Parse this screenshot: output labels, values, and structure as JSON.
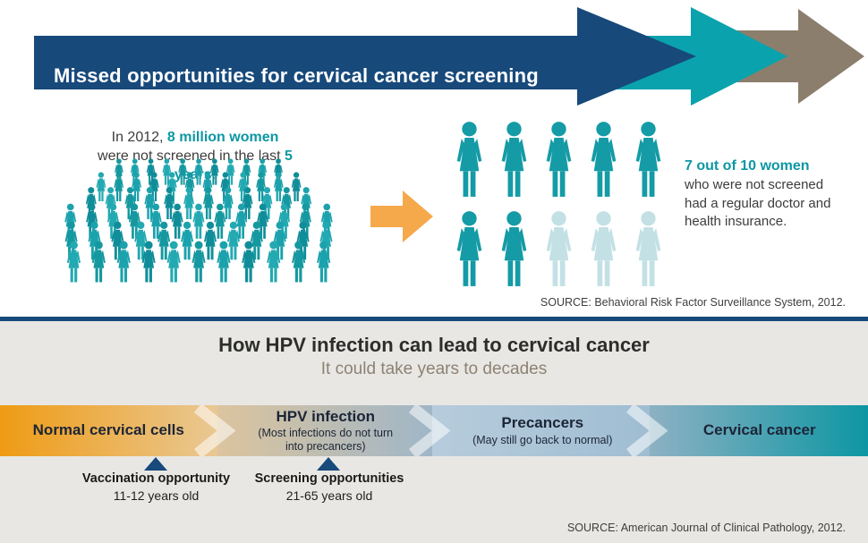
{
  "header": {
    "title": "Missed opportunities for cervical cancer screening"
  },
  "screening": {
    "intro": {
      "line1_prefix": "In 2012, ",
      "line1_highlight": "8 million women",
      "line2_prefix": "were not screened in the last ",
      "line2_highlight": "5 years",
      "line2_suffix": "."
    },
    "stat": {
      "highlight": "7 out of 10 women",
      "text": "who were not screened had a regular doctor and health insurance."
    },
    "source": "SOURCE: Behavioral Risk Factor Surveillance System, 2012."
  },
  "hpv": {
    "title": "How HPV infection can lead to cervical cancer",
    "subtitle": "It could take years to decades",
    "stages": [
      {
        "label": "Normal cervical cells",
        "sublabel": ""
      },
      {
        "label": "HPV infection",
        "sublabel": "(Most infections do not turn into precancers)"
      },
      {
        "label": "Precancers",
        "sublabel": "(May still go back to normal)"
      },
      {
        "label": "Cervical cancer",
        "sublabel": ""
      }
    ],
    "markers": [
      {
        "label": "Vaccination opportunity",
        "sublabel": "11-12 years old"
      },
      {
        "label": "Screening opportunities",
        "sublabel": "21-65 years old"
      }
    ],
    "source": "SOURCE: American Journal of Clinical Pathology, 2012."
  },
  "pictograms": {
    "crowd": {
      "rows": [
        11,
        12,
        12,
        13,
        12,
        11
      ]
    },
    "grid": {
      "total": 10,
      "highlighted": 7,
      "columns": 5
    }
  },
  "colors": {
    "navy": "#17497b",
    "teal": "#149ba6",
    "light_teal": "#c3e1e5",
    "brown": "#8c7e6c",
    "orange": "#f5a94b",
    "crowd_shades": [
      "#15989f",
      "#22a9b1",
      "#0f8d99",
      "#1ba2ac"
    ]
  },
  "chart_data": [
    {
      "type": "pictograph",
      "title": "Missed opportunities for cervical cancer screening",
      "statement": "In 2012, 8 million women were not screened in the last 5 years.",
      "units_total": 10,
      "units_highlighted": 7,
      "annotation": "7 out of 10 women who were not screened had a regular doctor and health insurance.",
      "source": "SOURCE: Behavioral Risk Factor Surveillance System, 2012."
    },
    {
      "type": "timeline",
      "title": "How HPV infection can lead to cervical cancer",
      "subtitle": "It could take years to decades",
      "stages": [
        "Normal cervical cells",
        "HPV infection (Most infections do not turn into precancers)",
        "Precancers (May still go back to normal)",
        "Cervical cancer"
      ],
      "annotations": [
        "Vaccination opportunity 11-12 years old",
        "Screening opportunities 21-65 years old"
      ],
      "source": "SOURCE: American Journal of Clinical Pathology, 2012."
    }
  ]
}
